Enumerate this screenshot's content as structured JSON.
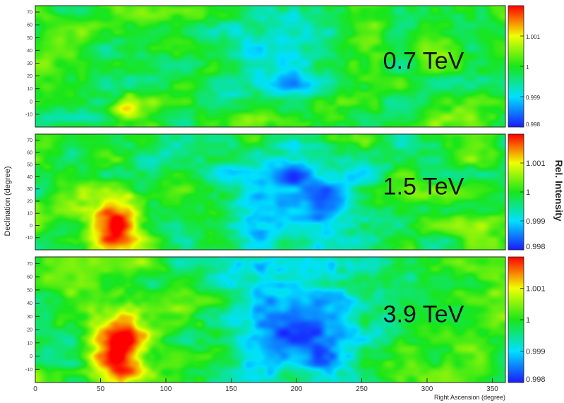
{
  "chart_data": {
    "type": "heatmap",
    "xlabel": "Right Ascension (degree)",
    "ylabel": "Declination (degree)",
    "colorbar_label": "Rel. Intensity",
    "x_range": [
      0,
      360
    ],
    "y_range": [
      -20,
      75
    ],
    "x_ticks": [
      0,
      50,
      100,
      150,
      200,
      250,
      300,
      350
    ],
    "y_ticks": [
      -10,
      0,
      10,
      20,
      30,
      40,
      50,
      60,
      70
    ],
    "color_range": [
      0.998,
      1.002
    ],
    "colorbar_ticks": [
      "1.001",
      "1",
      "0.999",
      "0.998"
    ],
    "colorbar_ticks_top_panel": [
      "1.001",
      "1",
      "0.999",
      "0.998"
    ],
    "colorscale": [
      "#1a1aff",
      "#00e0ff",
      "#19e619",
      "#f0ff00",
      "#ff0000"
    ],
    "panels": [
      {
        "label": "0.7 TeV",
        "background": 1.0,
        "features": [
          {
            "kind": "deficit",
            "ra_center": 195,
            "dec_center": 35,
            "ra_radius": 45,
            "dec_radius": 40,
            "amplitude": -0.0011
          },
          {
            "kind": "excess",
            "ra_center": 68,
            "dec_center": -5,
            "ra_radius": 12,
            "dec_radius": 10,
            "amplitude": 0.0012
          }
        ]
      },
      {
        "label": "1.5 TeV",
        "background": 1.0,
        "features": [
          {
            "kind": "deficit",
            "ra_center": 200,
            "dec_center": 25,
            "ra_radius": 55,
            "dec_radius": 50,
            "amplitude": -0.0016
          },
          {
            "kind": "excess",
            "ra_center": 62,
            "dec_center": 0,
            "ra_radius": 22,
            "dec_radius": 25,
            "amplitude": 0.0019
          }
        ]
      },
      {
        "label": "3.9 TeV",
        "background": 1.0,
        "features": [
          {
            "kind": "deficit",
            "ra_center": 200,
            "dec_center": 25,
            "ra_radius": 55,
            "dec_radius": 55,
            "amplitude": -0.0018
          },
          {
            "kind": "excess",
            "ra_center": 65,
            "dec_center": 5,
            "ra_radius": 22,
            "dec_radius": 30,
            "amplitude": 0.0022
          }
        ]
      }
    ]
  }
}
